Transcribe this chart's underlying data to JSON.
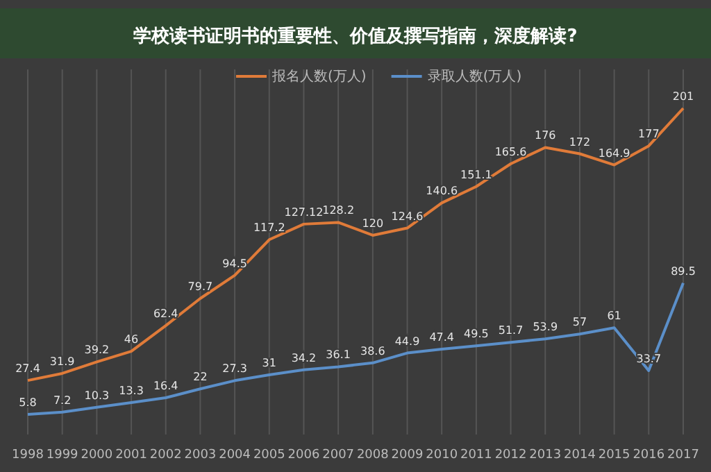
{
  "chart_data": {
    "type": "line",
    "title": "学校读书证明书的重要性、价值及撰写指南，深度解读?",
    "categories": [
      "1998",
      "1999",
      "2000",
      "2001",
      "2002",
      "2003",
      "2004",
      "2005",
      "2006",
      "2007",
      "2008",
      "2009",
      "2010",
      "2011",
      "2012",
      "2013",
      "2014",
      "2015",
      "2016",
      "2017"
    ],
    "series": [
      {
        "name": "报名人数(万人)",
        "color": "#e07b39",
        "values": [
          27.4,
          31.9,
          39.2,
          46,
          62.4,
          79.7,
          94.5,
          117.2,
          127.12,
          128.2,
          120,
          124.6,
          140.6,
          151.1,
          165.6,
          176,
          172,
          164.9,
          177,
          201
        ]
      },
      {
        "name": "录取人数(万人)",
        "color": "#5b8fc9",
        "values": [
          5.8,
          7.2,
          10.3,
          13.3,
          16.4,
          22,
          27.3,
          31,
          34.2,
          36.1,
          38.6,
          44.9,
          47.4,
          49.5,
          51.7,
          53.9,
          57,
          61,
          33.7,
          89.5
        ]
      }
    ],
    "data_labels": true,
    "grid": "x",
    "legend": "top",
    "marker": "none",
    "line_style": "solid"
  }
}
